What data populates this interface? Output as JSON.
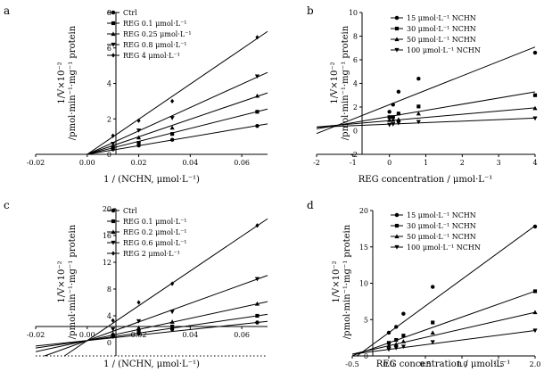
{
  "chart_data": [
    {
      "panel": "a",
      "type": "scatter",
      "xlabel": "1 / (NCHN, μmol·L⁻¹)",
      "ylabel_line1": "1/V×10⁻²",
      "ylabel_line2": "/pmol·min⁻¹·mg⁻¹ protein",
      "xlim": [
        -0.02,
        0.07
      ],
      "ylim": [
        0,
        8
      ],
      "xticks": [
        -0.02,
        0,
        0.02,
        0.04,
        0.06
      ],
      "xtick_labels": [
        "-0.02",
        "0.00",
        "0.02",
        "0.04",
        "0.06"
      ],
      "yticks": [
        2,
        4,
        6,
        8
      ],
      "ytick_labels": [
        "2",
        "4",
        "6",
        "8"
      ],
      "zero_label": "0",
      "legend": "top-left",
      "series": [
        {
          "name": "Ctrl",
          "marker": "circle",
          "x": [
            0.01,
            0.02,
            0.033,
            0.066
          ],
          "y": [
            0.28,
            0.5,
            0.82,
            1.6
          ],
          "fit": [
            0.0,
            24.5
          ]
        },
        {
          "name": "REG 0.1 μmol·L⁻¹",
          "marker": "square",
          "x": [
            0.01,
            0.02,
            0.033,
            0.066
          ],
          "y": [
            0.38,
            0.65,
            1.15,
            2.4
          ],
          "fit": [
            0.0,
            36.5
          ]
        },
        {
          "name": "REG 0.25 μmol·L⁻¹",
          "marker": "triangle-up",
          "x": [
            0.01,
            0.02,
            0.033,
            0.066
          ],
          "y": [
            0.5,
            0.95,
            1.5,
            3.3
          ],
          "fit": [
            0.0,
            49.5
          ]
        },
        {
          "name": "REG 0.8 μmol·L⁻¹",
          "marker": "triangle-down",
          "x": [
            0.01,
            0.02,
            0.033,
            0.066
          ],
          "y": [
            0.6,
            1.35,
            2.05,
            4.4
          ],
          "fit": [
            0.0,
            66.0
          ]
        },
        {
          "name": "REG 4 μmol·L⁻¹",
          "marker": "diamond",
          "x": [
            0.01,
            0.02,
            0.033,
            0.066
          ],
          "y": [
            1.05,
            1.9,
            3.0,
            6.6
          ],
          "fit": [
            0.0,
            99.0
          ]
        }
      ]
    },
    {
      "panel": "b",
      "type": "scatter",
      "xlabel": "REG concentration / μmol·L⁻¹",
      "ylabel_line1": "1/V×10⁻²",
      "ylabel_line2": "/pmol·min⁻¹·mg⁻¹ protein",
      "xlim": [
        -2,
        4
      ],
      "ylim": [
        -2,
        10
      ],
      "xticks": [
        -2,
        -1,
        0,
        1,
        2,
        3,
        4
      ],
      "xtick_labels": [
        "-2",
        "-1",
        "0",
        "1",
        "2",
        "3",
        "4"
      ],
      "yticks": [
        -2,
        2,
        4,
        6,
        8,
        10
      ],
      "ytick_labels": [
        "-2",
        "2",
        "4",
        "6",
        "8",
        "10"
      ],
      "zero_label": "0",
      "legend": "top-right",
      "series": [
        {
          "name": "15 μmol·L⁻¹ NCHN",
          "marker": "circle",
          "x": [
            0,
            0.1,
            0.25,
            0.8,
            4
          ],
          "y": [
            1.6,
            2.2,
            3.3,
            4.4,
            6.6
          ],
          "fit": [
            2.2,
            1.22
          ]
        },
        {
          "name": "30 μmol·L⁻¹ NCHN",
          "marker": "square",
          "x": [
            0,
            0.1,
            0.25,
            0.8,
            4
          ],
          "y": [
            1.15,
            1.15,
            1.45,
            2.05,
            3.0
          ],
          "fit": [
            1.2,
            0.52
          ]
        },
        {
          "name": "50 μmol·L⁻¹ NCHN",
          "marker": "triangle-up",
          "x": [
            0,
            0.1,
            0.25,
            0.8,
            4
          ],
          "y": [
            0.9,
            0.9,
            0.95,
            1.45,
            1.9
          ],
          "fit": [
            0.85,
            0.27
          ]
        },
        {
          "name": "100 μmol·L⁻¹ NCHN",
          "marker": "triangle-down",
          "x": [
            0,
            0.1,
            0.25,
            0.8,
            4
          ],
          "y": [
            0.5,
            0.55,
            0.65,
            0.75,
            1.05
          ],
          "fit": [
            0.55,
            0.13
          ]
        }
      ]
    },
    {
      "panel": "c",
      "type": "scatter",
      "xlabel": "1 / (NCHN, μmol·L⁻¹)",
      "ylabel_line1": "1/V×10⁻²",
      "ylabel_line2": "/pmol·min⁻¹·mg⁻¹ protein",
      "xlim": [
        -0.02,
        0.07
      ],
      "ylim": [
        -2,
        20
      ],
      "xticks": [
        -0.02,
        0,
        0.02,
        0.04,
        0.06
      ],
      "xtick_labels": [
        "-0.02",
        "0.00",
        "0.02",
        "0.04",
        "0.06"
      ],
      "yticks": [
        4,
        8,
        12,
        16,
        20
      ],
      "ytick_labels": [
        "4",
        "8",
        "12",
        "16",
        "20"
      ],
      "zero_label": "0",
      "legend": "top-left",
      "series": [
        {
          "name": "Ctrl",
          "marker": "circle",
          "x": [
            0.01,
            0.02,
            0.033,
            0.066
          ],
          "y": [
            0.9,
            1.4,
            2.0,
            3.0
          ],
          "fit": [
            0.3,
            41.0
          ]
        },
        {
          "name": "REG 0.1 μmol·L⁻¹",
          "marker": "square",
          "x": [
            0.01,
            0.02,
            0.033,
            0.066
          ],
          "y": [
            1.1,
            1.7,
            2.4,
            4.0
          ],
          "fit": [
            0.3,
            56.0
          ]
        },
        {
          "name": "REG 0.2 μmol·L⁻¹",
          "marker": "triangle-up",
          "x": [
            0.01,
            0.02,
            0.033,
            0.066
          ],
          "y": [
            1.3,
            2.2,
            3.1,
            5.8
          ],
          "fit": [
            0.3,
            83.0
          ]
        },
        {
          "name": "REG 0.6 μmol·L⁻¹",
          "marker": "triangle-down",
          "x": [
            0.01,
            0.02,
            0.033,
            0.066
          ],
          "y": [
            2.0,
            3.2,
            4.6,
            9.5
          ],
          "fit": [
            0.3,
            139.0
          ]
        },
        {
          "name": "REG 2 μmol·L⁻¹",
          "marker": "diamond",
          "x": [
            0.01,
            0.02,
            0.033,
            0.066
          ],
          "y": [
            3.3,
            6.0,
            8.8,
            17.5
          ],
          "fit": [
            0.3,
            260.0
          ]
        }
      ]
    },
    {
      "panel": "d",
      "type": "scatter",
      "xlabel": "REG concentration / μmol·L⁻¹",
      "ylabel_line1": "1/V×10⁻²",
      "ylabel_line2": "/pmol·min⁻¹·mg⁻¹ protein",
      "xlim": [
        -0.5,
        2.0
      ],
      "ylim": [
        0,
        20
      ],
      "xticks": [
        -0.5,
        0,
        0.5,
        1.0,
        1.5,
        2.0
      ],
      "xtick_labels": [
        "-0.5",
        "0.0",
        "0.5",
        "1.0",
        "1.5",
        "2.0"
      ],
      "yticks": [
        5,
        10,
        15,
        20
      ],
      "ytick_labels": [
        "5",
        "10",
        "15",
        "20"
      ],
      "zero_label": "0",
      "legend": "top-left",
      "series": [
        {
          "name": "15 μmol·L⁻¹ NCHN",
          "marker": "circle",
          "x": [
            0,
            0.1,
            0.2,
            0.6,
            2.0
          ],
          "y": [
            3.2,
            4.0,
            5.8,
            9.5,
            17.8
          ],
          "fit": [
            3.2,
            7.35
          ]
        },
        {
          "name": "30 μmol·L⁻¹ NCHN",
          "marker": "square",
          "x": [
            0,
            0.1,
            0.2,
            0.6,
            2.0
          ],
          "y": [
            1.8,
            2.2,
            2.8,
            4.6,
            8.9
          ],
          "fit": [
            1.8,
            3.55
          ]
        },
        {
          "name": "50 μmol·L⁻¹ NCHN",
          "marker": "triangle-up",
          "x": [
            0,
            0.1,
            0.2,
            0.6,
            2.0
          ],
          "y": [
            1.4,
            1.6,
            2.0,
            3.2,
            6.0
          ],
          "fit": [
            1.4,
            2.3
          ]
        },
        {
          "name": "100 μmol·L⁻¹ NCHN",
          "marker": "triangle-down",
          "x": [
            0,
            0.1,
            0.2,
            0.6,
            2.0
          ],
          "y": [
            0.9,
            1.1,
            1.3,
            1.9,
            3.5
          ],
          "fit": [
            0.9,
            1.3
          ]
        }
      ]
    }
  ]
}
